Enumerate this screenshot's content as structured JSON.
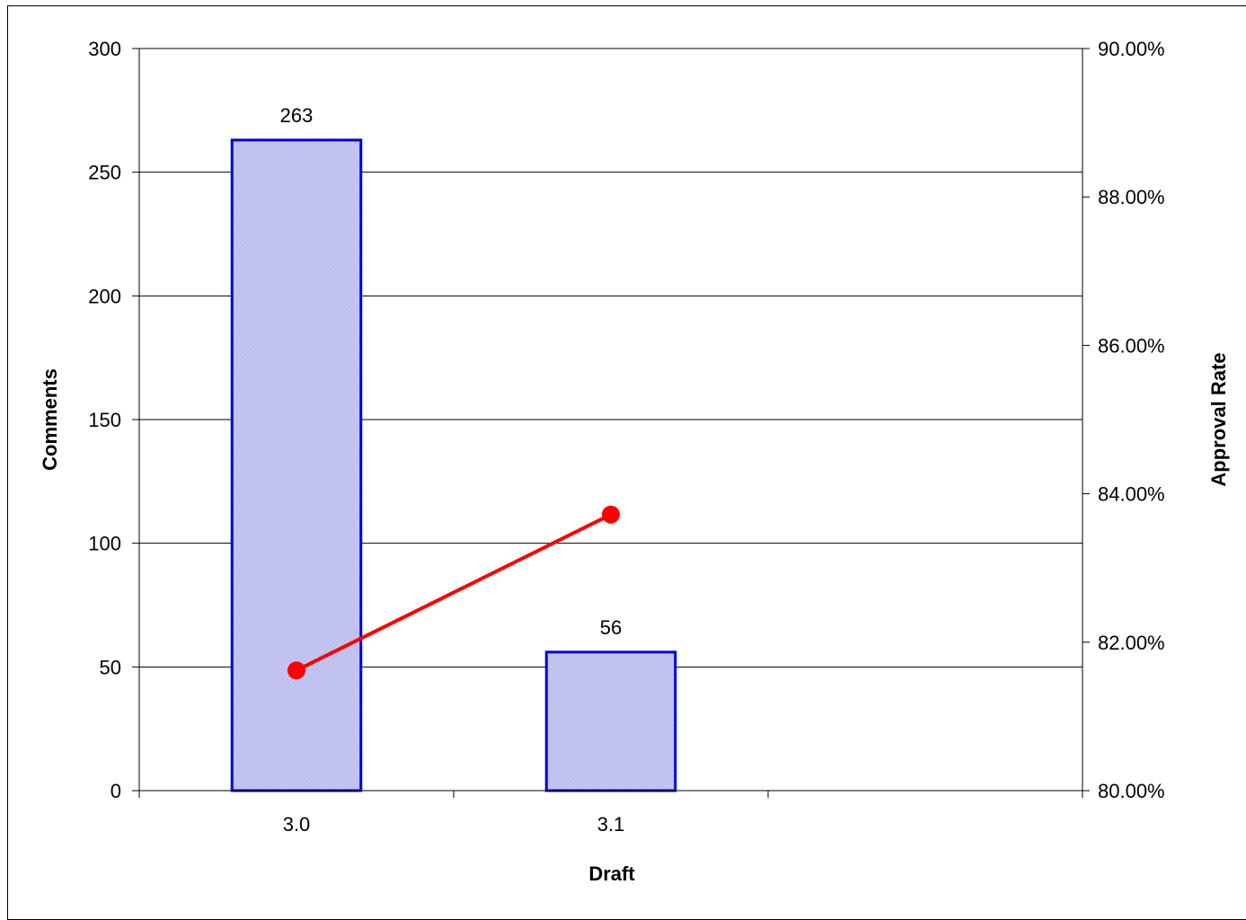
{
  "chart_data": {
    "type": "bar",
    "categories": [
      "3.0",
      "3.1",
      ""
    ],
    "series": [
      {
        "type": "bar",
        "axis": "left",
        "values": [
          263,
          56,
          null
        ],
        "data_labels": [
          "263",
          "56",
          ""
        ]
      },
      {
        "type": "line",
        "axis": "right",
        "values": [
          0.8162,
          0.8372,
          null
        ]
      }
    ],
    "xlabel": "Draft",
    "ylabel": "Comments",
    "y2label": "Approval Rate",
    "ylim": [
      0,
      300
    ],
    "y2lim": [
      0.8,
      0.9
    ],
    "yticks": [
      "0",
      "50",
      "100",
      "150",
      "200",
      "250",
      "300"
    ],
    "y2ticks": [
      "80.00%",
      "82.00%",
      "84.00%",
      "86.00%",
      "88.00%",
      "90.00%"
    ],
    "grid": true,
    "legend": "none",
    "colors": {
      "bar_fill": "#c4c6f0",
      "bar_stroke": "#0000dd",
      "line": "#ff0000",
      "marker": "#ff0000",
      "grid": "#000000"
    }
  }
}
